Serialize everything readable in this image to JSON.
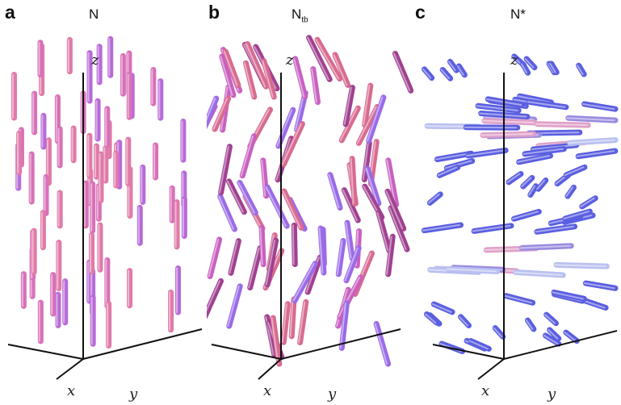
{
  "panels": [
    {
      "id": "a",
      "letter": "a",
      "label_main": "N",
      "label_sub": "",
      "axis_labels": {
        "z": "z",
        "x": "x",
        "y": "y"
      },
      "rod_orientation": "parallel to z",
      "rod_colors": [
        "#d870b8",
        "#b86ad8",
        "#e07aa8"
      ]
    },
    {
      "id": "b",
      "letter": "b",
      "label_main": "N",
      "label_sub": "tb",
      "axis_labels": {
        "z": "z",
        "x": "x",
        "y": "y"
      },
      "rod_orientation": "tilted, helical modulation along z",
      "rod_colors": [
        "#c860c0",
        "#9a6ae8",
        "#d86a90",
        "#a04090"
      ]
    },
    {
      "id": "c",
      "letter": "c",
      "label_main": "N*",
      "label_sub": "",
      "axis_labels": {
        "z": "z",
        "x": "x",
        "y": "y"
      },
      "rod_orientation": "perpendicular to z, rotating with height",
      "rod_colors": [
        "#9a8ae0",
        "#5a5ee0",
        "#e0a0c8",
        "#b8c0f0"
      ]
    }
  ]
}
